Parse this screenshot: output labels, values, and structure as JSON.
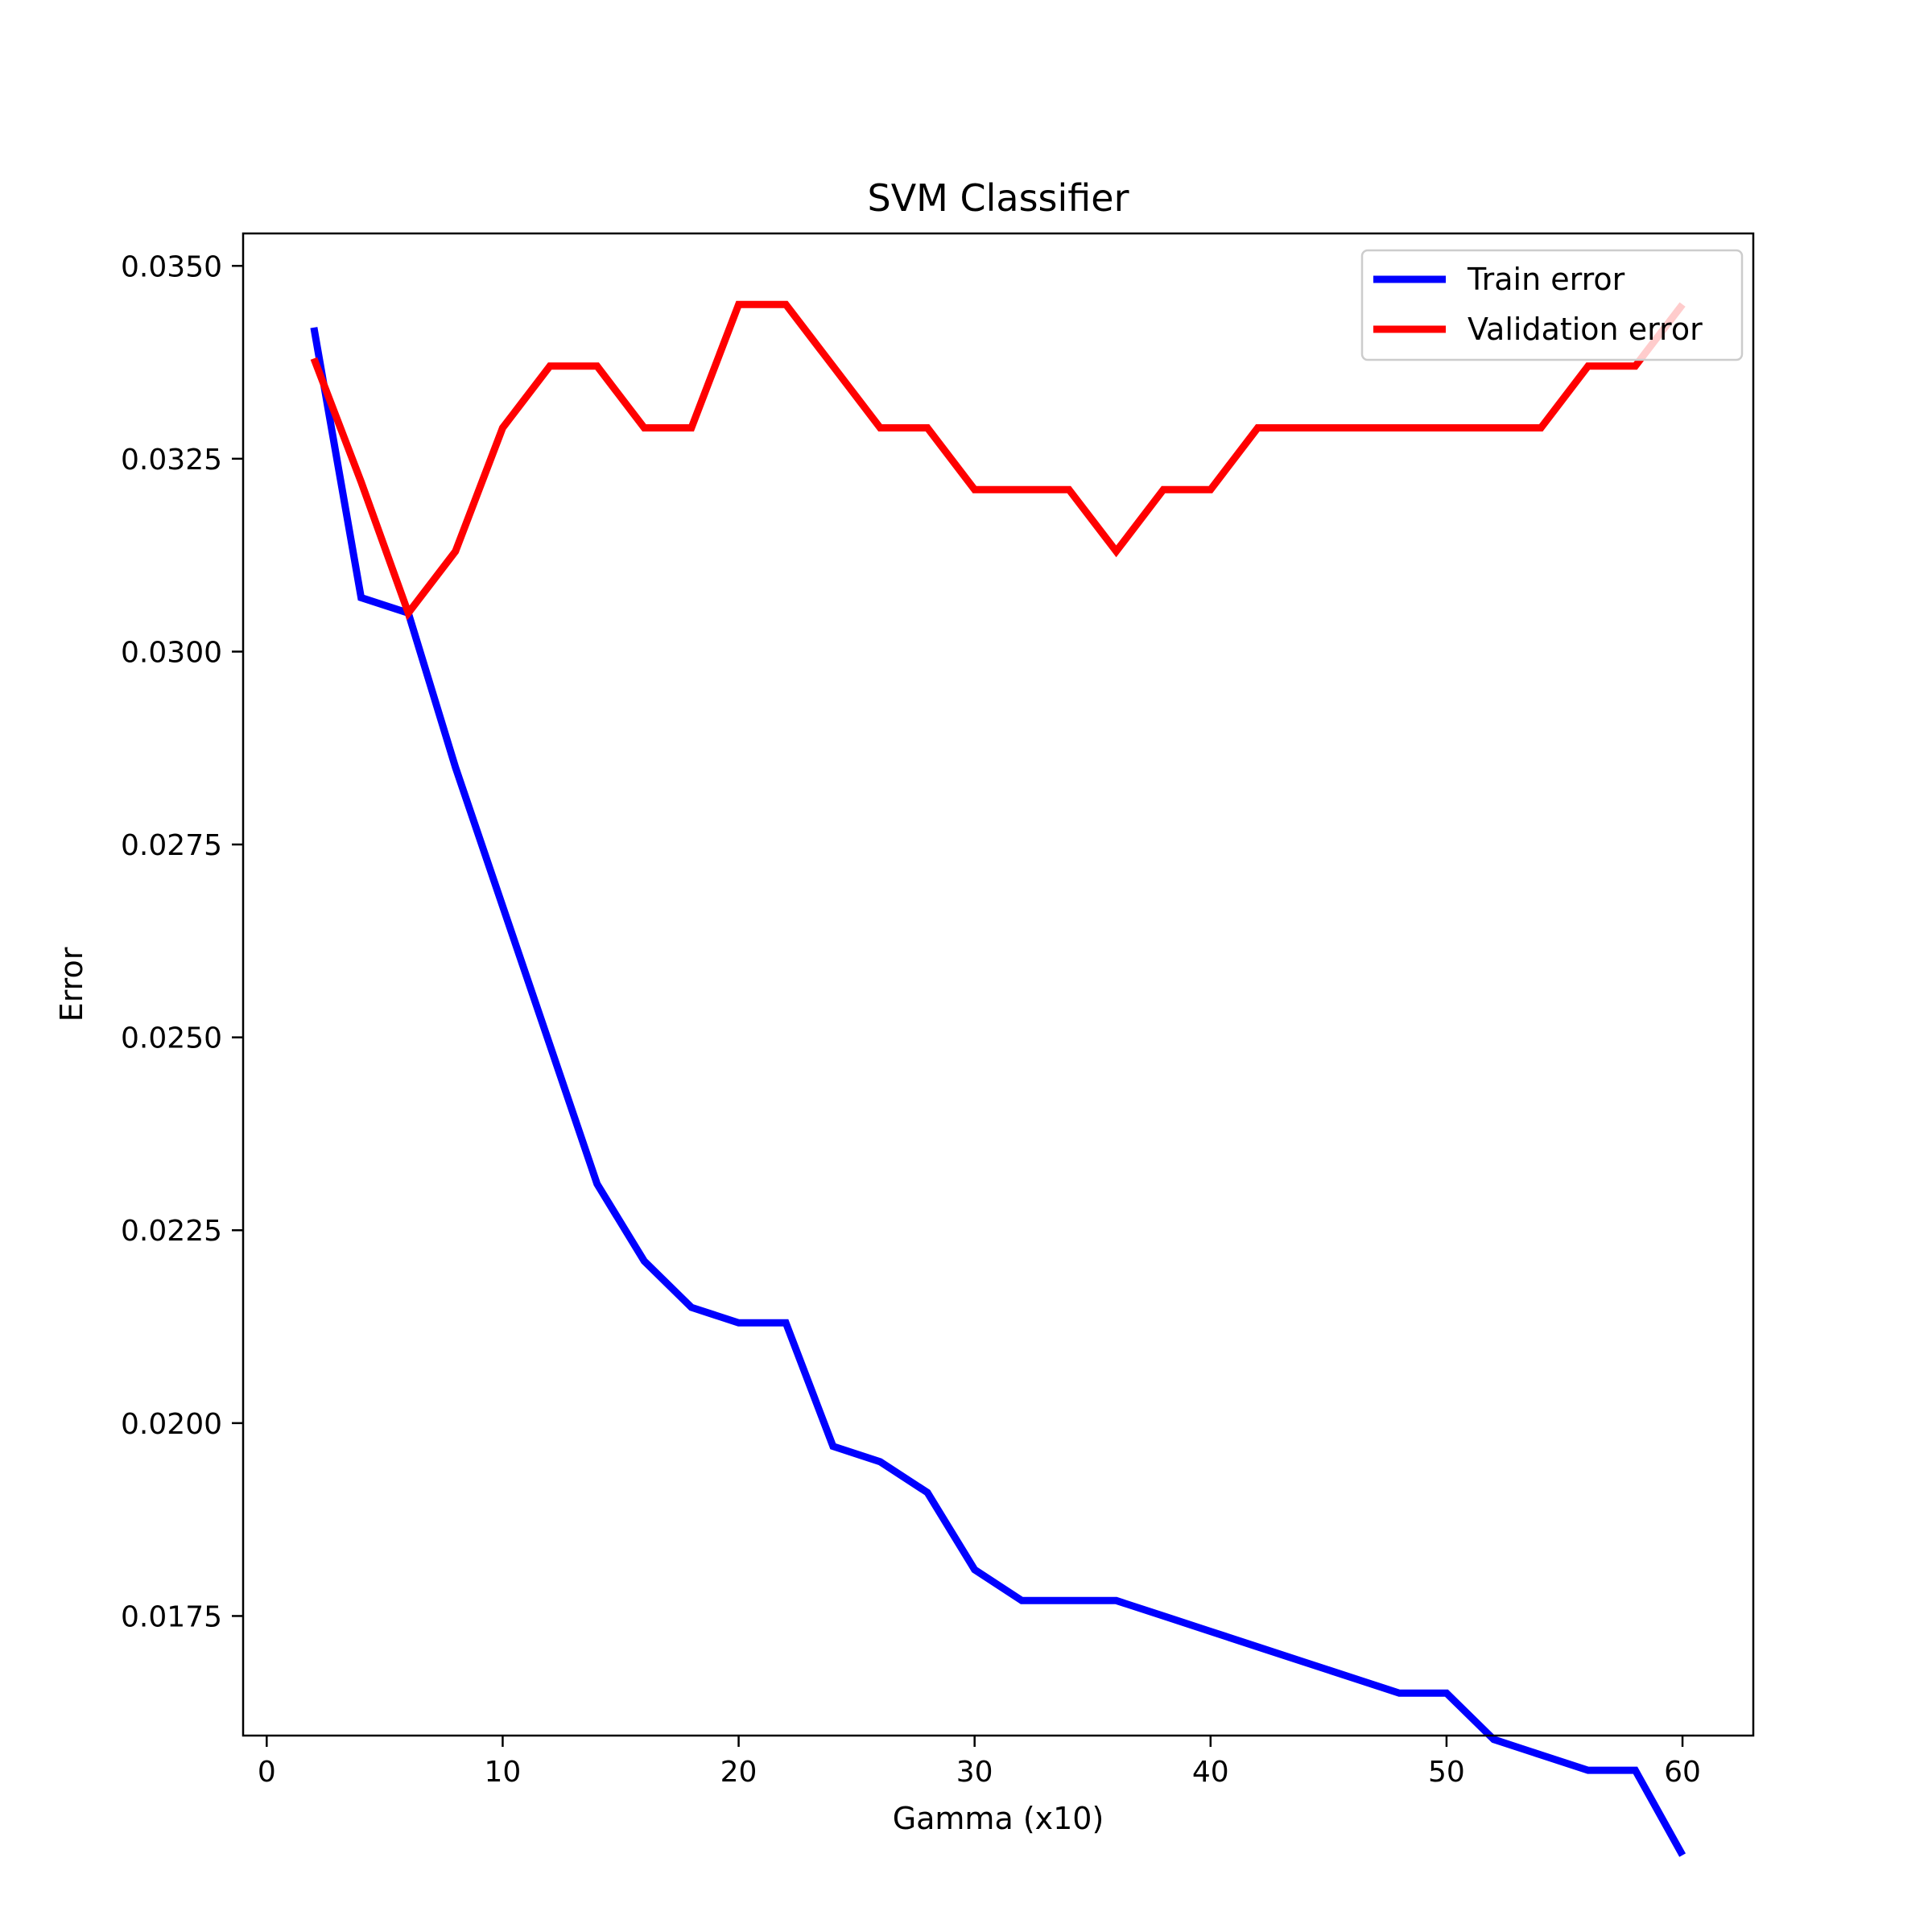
{
  "chart_data": {
    "type": "line",
    "title": "SVM Classifier",
    "xlabel": "Gamma (x10)",
    "ylabel": "Error",
    "xlim": [
      -1,
      63
    ],
    "ylim": [
      0.01595,
      0.03542
    ],
    "xticks": [
      0,
      10,
      20,
      30,
      40,
      50,
      60
    ],
    "xtick_labels": [
      "0",
      "10",
      "20",
      "30",
      "40",
      "50",
      "60"
    ],
    "yticks": [
      0.0175,
      0.02,
      0.0225,
      0.025,
      0.0275,
      0.03,
      0.0325,
      0.035
    ],
    "ytick_labels": [
      "0.0175",
      "0.0200",
      "0.0225",
      "0.0250",
      "0.0275",
      "0.0300",
      "0.0325",
      "0.0350"
    ],
    "grid": false,
    "legend_position": "top-right",
    "x": [
      2,
      4,
      6,
      8,
      10,
      12,
      14,
      16,
      18,
      20,
      22,
      24,
      26,
      28,
      30,
      32,
      34,
      36,
      38,
      40,
      42,
      44,
      46,
      48,
      50,
      52,
      54,
      56,
      58,
      60
    ],
    "series": [
      {
        "name": "Train error",
        "color": "#0000ff",
        "values": [
          0.0342,
          0.0307,
          0.0305,
          0.0285,
          0.0267,
          0.0249,
          0.0231,
          0.0221,
          0.0215,
          0.0213,
          0.0213,
          0.0197,
          0.0195,
          0.0191,
          0.0181,
          0.0177,
          0.0177,
          0.0177,
          0.0175,
          0.0173,
          0.0171,
          0.0169,
          0.0167,
          0.0165,
          0.0165,
          0.0159,
          0.0157,
          0.0155,
          0.0155,
          0.0144
        ]
      },
      {
        "name": "Validation error",
        "color": "#ff0000",
        "values": [
          0.0338,
          0.0322,
          0.0305,
          0.0313,
          0.0329,
          0.0337,
          0.0337,
          0.0329,
          0.0329,
          0.0345,
          0.0345,
          0.0337,
          0.0329,
          0.0329,
          0.0321,
          0.0321,
          0.0321,
          0.0313,
          0.0321,
          0.0321,
          0.0329,
          0.0329,
          0.0329,
          0.0329,
          0.0329,
          0.0329,
          0.0329,
          0.0337,
          0.0337,
          0.0345
        ]
      }
    ]
  }
}
